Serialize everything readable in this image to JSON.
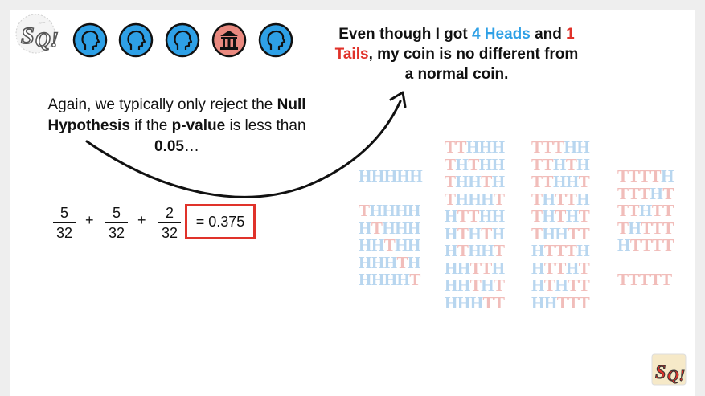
{
  "logo_tl": {
    "text": "StatQuest"
  },
  "logo_br": {
    "text": "StatQuest"
  },
  "icons": [
    "head-icon",
    "head-icon",
    "head-icon",
    "building-icon",
    "head-icon"
  ],
  "quote": {
    "part1": "Even though I got ",
    "heads": "4 Heads",
    "part2": " and ",
    "tails": "1 Tails",
    "part3": ", my coin is no different from a normal coin."
  },
  "note": {
    "part1": "Again, we typically only reject the ",
    "null_hypothesis": "Null Hypothesis",
    "part2": " if the ",
    "p_value": "p-value",
    "part3": " is less than ",
    "threshold": "0.05",
    "part4": "…"
  },
  "equation": {
    "fractions": [
      {
        "num": "5",
        "den": "32"
      },
      {
        "num": "5",
        "den": "32"
      },
      {
        "num": "2",
        "den": "32"
      }
    ],
    "plus": "+",
    "result": "= 0.375"
  },
  "outcomes": [
    [
      "HHHHH",
      "",
      "THHHH",
      "HTHHH",
      "HHTHH",
      "HHHTH",
      "HHHHT"
    ],
    [
      "TTHHH",
      "THTHH",
      "THHTH",
      "THHHT",
      "HTTHH",
      "HTHTH",
      "HTHHT",
      "HHTTH",
      "HHTHT",
      "HHHTT"
    ],
    [
      "TTTHH",
      "TTHTH",
      "TTHHT",
      "THTTH",
      "THTHT",
      "THHTT",
      "HTTTH",
      "HTTHT",
      "HTHTT",
      "HHTTT"
    ],
    [
      "TTTTH",
      "TTTHT",
      "TTHTT",
      "THTTT",
      "HTTTT",
      "",
      "TTTTT"
    ]
  ]
}
